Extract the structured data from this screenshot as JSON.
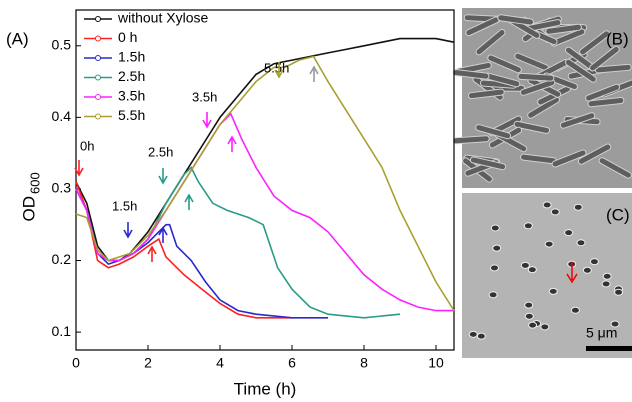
{
  "chart_data": {
    "type": "line",
    "panel_labels": [
      "(A)",
      "(B)",
      "(C)"
    ],
    "scale_bar": "5 μm",
    "xlabel": "Time (h)",
    "ylabel": "OD",
    "ylabel_subscript": "600",
    "xlim": [
      0,
      10.5
    ],
    "xticks": [
      0,
      2,
      4,
      6,
      8,
      10
    ],
    "ylim": [
      0.075,
      0.55
    ],
    "yticks": [
      0.1,
      0.2,
      0.3,
      0.4,
      0.5
    ],
    "annotations": [
      "0h",
      "1.5h",
      "2.5h",
      "3.5h",
      "5.5h"
    ],
    "series": [
      {
        "name": "without Xylose",
        "color": "#111111",
        "x": [
          0,
          0.3,
          0.6,
          0.9,
          1.2,
          1.5,
          2,
          2.5,
          3,
          3.5,
          4,
          4.5,
          5,
          5.5,
          6,
          6.5,
          7,
          7.5,
          8,
          8.5,
          9,
          9.5,
          10,
          10.5
        ],
        "values": [
          0.31,
          0.28,
          0.22,
          0.2,
          0.2,
          0.21,
          0.24,
          0.28,
          0.32,
          0.36,
          0.4,
          0.43,
          0.46,
          0.475,
          0.48,
          0.485,
          0.49,
          0.495,
          0.5,
          0.505,
          0.51,
          0.51,
          0.51,
          0.505
        ]
      },
      {
        "name": "0 h",
        "color": "#ff2020",
        "x": [
          0,
          0.3,
          0.6,
          0.9,
          1.2,
          1.6,
          2,
          2.3,
          2.5,
          2.8,
          3,
          3.5,
          4,
          4.5,
          5,
          5.5,
          6
        ],
        "values": [
          0.31,
          0.27,
          0.2,
          0.19,
          0.195,
          0.205,
          0.22,
          0.23,
          0.205,
          0.19,
          0.18,
          0.16,
          0.14,
          0.125,
          0.12,
          0.12,
          0.12
        ]
      },
      {
        "name": "1.5h",
        "color": "#2a2acc",
        "x": [
          0,
          0.3,
          0.6,
          0.9,
          1.2,
          1.6,
          2,
          2.5,
          2.6,
          2.8,
          3.2,
          3.6,
          4,
          4.5,
          5,
          6,
          7
        ],
        "values": [
          0.3,
          0.27,
          0.21,
          0.195,
          0.2,
          0.21,
          0.225,
          0.25,
          0.25,
          0.22,
          0.2,
          0.17,
          0.145,
          0.13,
          0.125,
          0.12,
          0.12
        ]
      },
      {
        "name": "2.5h",
        "color": "#2a9a8a",
        "x": [
          0,
          0.3,
          0.6,
          0.9,
          1.2,
          1.6,
          2,
          2.5,
          3,
          3.2,
          3.4,
          3.8,
          4.2,
          4.8,
          5.2,
          5.6,
          6,
          6.5,
          7,
          8,
          9
        ],
        "values": [
          0.3,
          0.27,
          0.21,
          0.2,
          0.2,
          0.21,
          0.23,
          0.28,
          0.32,
          0.33,
          0.31,
          0.28,
          0.27,
          0.26,
          0.25,
          0.19,
          0.16,
          0.135,
          0.125,
          0.12,
          0.125
        ]
      },
      {
        "name": "3.5h",
        "color": "#ff20ff",
        "x": [
          0,
          0.3,
          0.6,
          0.9,
          1.2,
          1.6,
          2,
          2.5,
          3,
          3.5,
          4,
          4.3,
          4.6,
          5,
          5.5,
          6,
          6.5,
          7,
          7.5,
          8,
          8.5,
          9,
          9.5,
          10,
          10.5
        ],
        "values": [
          0.3,
          0.27,
          0.21,
          0.2,
          0.2,
          0.21,
          0.23,
          0.27,
          0.31,
          0.35,
          0.39,
          0.405,
          0.37,
          0.33,
          0.29,
          0.27,
          0.26,
          0.24,
          0.21,
          0.18,
          0.16,
          0.145,
          0.135,
          0.13,
          0.13
        ]
      },
      {
        "name": "5.5h",
        "color": "#a8a030",
        "x": [
          0,
          0.3,
          0.6,
          0.9,
          1.5,
          2,
          2.5,
          3,
          3.5,
          4,
          4.5,
          5,
          5.5,
          5.8,
          6.2,
          6.6,
          7,
          7.5,
          8,
          8.5,
          9,
          9.5,
          10,
          10.5
        ],
        "values": [
          0.265,
          0.26,
          0.215,
          0.2,
          0.21,
          0.235,
          0.27,
          0.31,
          0.35,
          0.39,
          0.42,
          0.45,
          0.47,
          0.47,
          0.48,
          0.485,
          0.45,
          0.41,
          0.37,
          0.33,
          0.27,
          0.22,
          0.17,
          0.13
        ]
      }
    ]
  }
}
